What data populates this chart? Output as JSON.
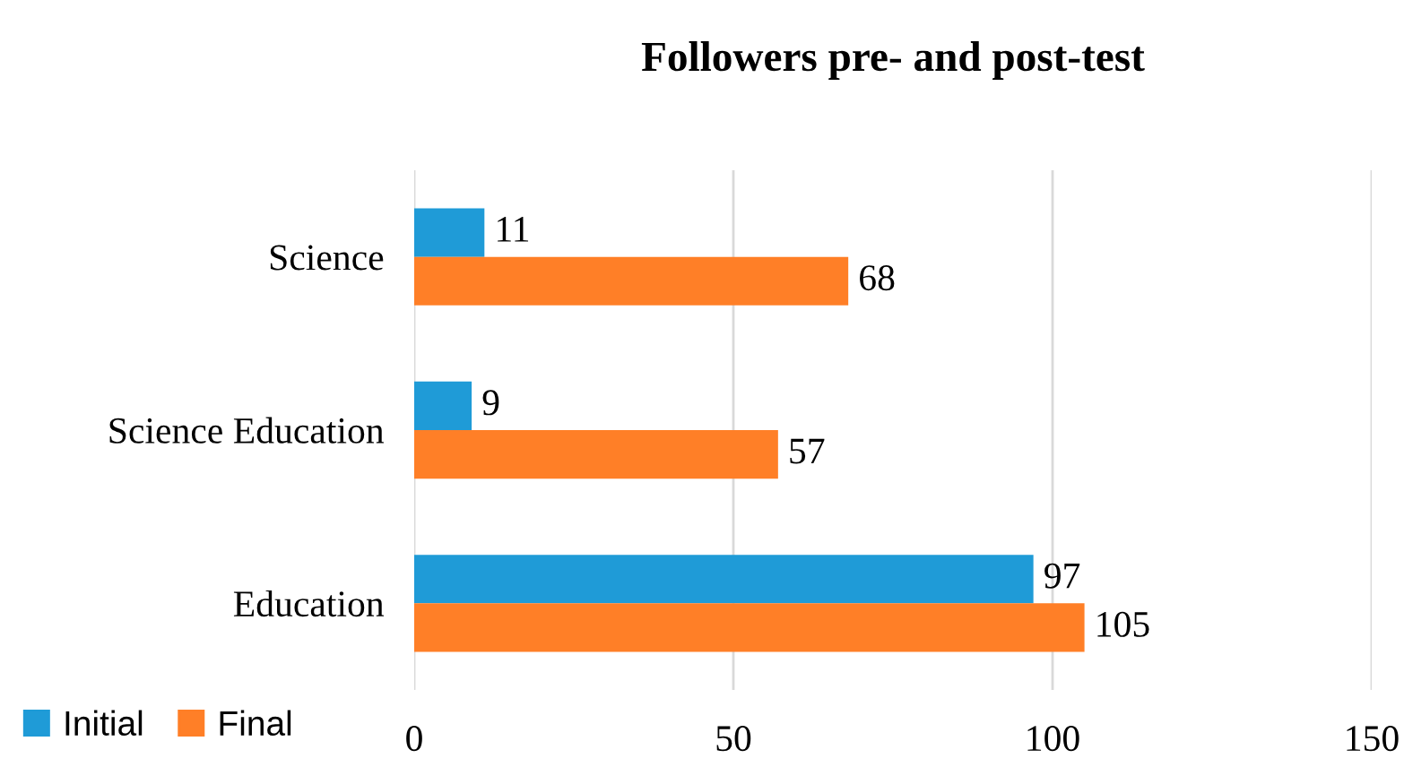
{
  "chart_data": {
    "type": "bar",
    "orientation": "horizontal",
    "title": "Followers pre- and post-test",
    "categories": [
      "Science",
      "Science Education",
      "Education"
    ],
    "series": [
      {
        "name": "Initial",
        "color": "#1f9bd7",
        "values": [
          11,
          9,
          97
        ]
      },
      {
        "name": "Final",
        "color": "#ff7f27",
        "values": [
          68,
          57,
          105
        ]
      }
    ],
    "xlim": [
      0,
      150
    ],
    "xticks": [
      0,
      50,
      100,
      150
    ],
    "grid": "x",
    "legend": "bottom left",
    "data_labels": true
  }
}
